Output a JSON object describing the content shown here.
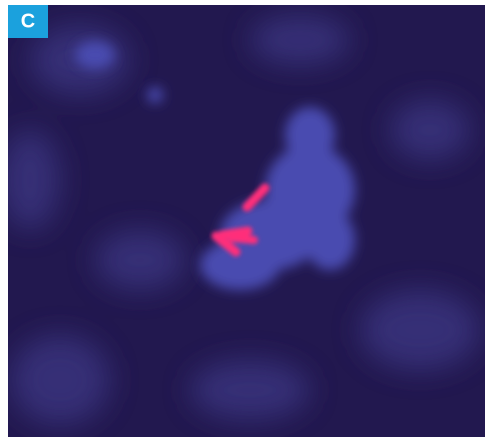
{
  "panel_label": "C"
}
